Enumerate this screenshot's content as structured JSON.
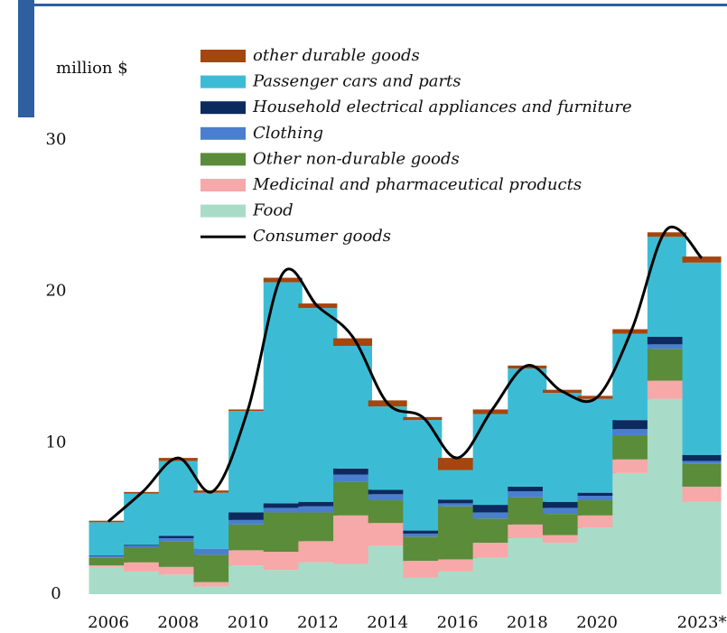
{
  "chart_data": {
    "type": "bar",
    "stacked": true,
    "y_axis_label": "million $",
    "categories": [
      "2006",
      null,
      "2008",
      null,
      "2010",
      null,
      "2012",
      null,
      "2014",
      null,
      "2016",
      null,
      "2018",
      null,
      "2020",
      null,
      null,
      "2023*"
    ],
    "ylim": [
      0,
      30
    ],
    "yticks": [
      0,
      10,
      20,
      30
    ],
    "series": [
      {
        "name": "Food",
        "color": "#a8dcc8",
        "values": [
          1.8,
          1.5,
          1.3,
          0.5,
          1.9,
          1.6,
          2.1,
          2.0,
          3.2,
          1.1,
          1.5,
          2.4,
          3.7,
          3.4,
          4.4,
          8.0,
          12.9,
          6.1
        ]
      },
      {
        "name": "Medicinal and pharmaceutical products",
        "color": "#f7a8a8",
        "values": [
          0.1,
          0.6,
          0.5,
          0.3,
          1.0,
          1.2,
          1.4,
          3.2,
          1.5,
          1.1,
          0.8,
          1.0,
          0.9,
          0.5,
          0.8,
          0.9,
          1.2,
          1.0
        ]
      },
      {
        "name": "Other non-durable goods",
        "color": "#5a8c3a",
        "values": [
          0.5,
          1.0,
          1.7,
          1.8,
          1.7,
          2.6,
          1.9,
          2.2,
          1.5,
          1.6,
          3.5,
          1.6,
          1.8,
          1.4,
          1.0,
          1.6,
          2.1,
          1.5
        ]
      },
      {
        "name": "Clothing",
        "color": "#4a7fcf",
        "values": [
          0.1,
          0.1,
          0.2,
          0.4,
          0.3,
          0.3,
          0.4,
          0.5,
          0.4,
          0.2,
          0.2,
          0.4,
          0.4,
          0.4,
          0.3,
          0.4,
          0.3,
          0.2
        ]
      },
      {
        "name": "Household electrical appliances and furniture",
        "color": "#0c2a5e",
        "values": [
          0.05,
          0.05,
          0.15,
          0,
          0.5,
          0.3,
          0.3,
          0.4,
          0.3,
          0.2,
          0.25,
          0.5,
          0.3,
          0.4,
          0.2,
          0.6,
          0.5,
          0.4
        ]
      },
      {
        "name": "Passenger cars and parts",
        "color": "#3cbcd4",
        "values": [
          2.2,
          3.4,
          4.95,
          3.7,
          6.7,
          14.6,
          12.8,
          8.1,
          5.5,
          7.3,
          1.95,
          6.0,
          7.8,
          7.2,
          6.2,
          5.7,
          6.6,
          12.7
        ]
      },
      {
        "name": "other durable goods",
        "color": "#a5460e",
        "values": [
          0.1,
          0.1,
          0.2,
          0.15,
          0.1,
          0.3,
          0.3,
          0.5,
          0.4,
          0.2,
          0.8,
          0.3,
          0.2,
          0.2,
          0.2,
          0.3,
          0.3,
          0.4
        ]
      },
      {
        "name": "Consumer goods",
        "type": "line",
        "color": "#000000",
        "values": [
          4.8,
          6.8,
          9.0,
          6.8,
          12.2,
          21.2,
          19.0,
          17.0,
          12.6,
          11.7,
          9.0,
          12.2,
          15.1,
          13.4,
          13.0,
          17.5,
          24.1,
          22.2
        ]
      }
    ]
  }
}
